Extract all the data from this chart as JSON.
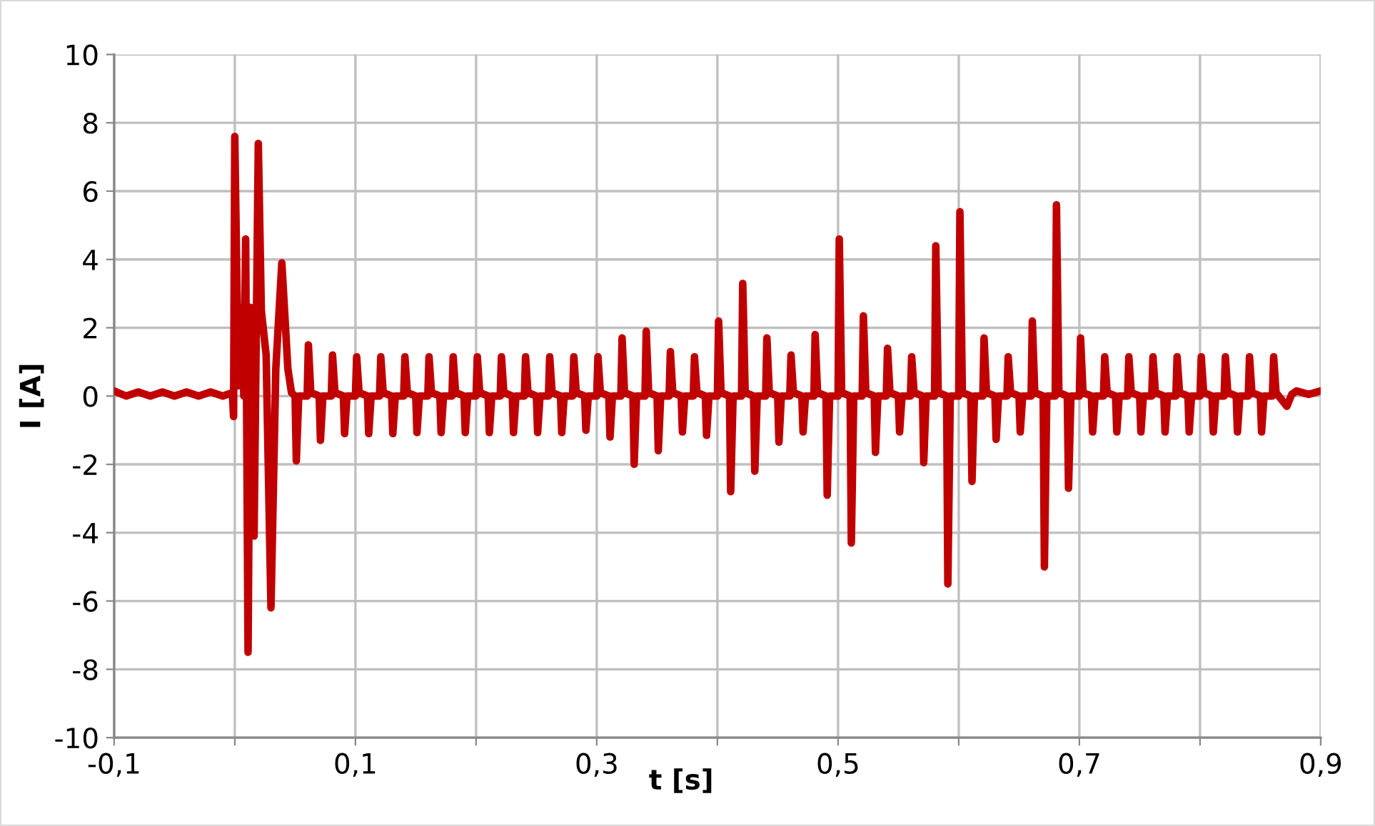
{
  "chart_data": {
    "type": "line",
    "xlabel": "t [s]",
    "ylabel": "I [A]",
    "xlim": [
      -0.1,
      0.9
    ],
    "ylim": [
      -10,
      10
    ],
    "xticks": [
      {
        "value": -0.1,
        "label": "-0,1"
      },
      {
        "value": 0,
        "label": null
      },
      {
        "value": 0.1,
        "label": "0,1"
      },
      {
        "value": 0.2,
        "label": null
      },
      {
        "value": 0.3,
        "label": "0,3"
      },
      {
        "value": 0.4,
        "label": null
      },
      {
        "value": 0.5,
        "label": "0,5"
      },
      {
        "value": 0.6,
        "label": null
      },
      {
        "value": 0.7,
        "label": "0,7"
      },
      {
        "value": 0.8,
        "label": null
      },
      {
        "value": 0.9,
        "label": "0,9"
      }
    ],
    "yticks": [
      -10,
      -8,
      -6,
      -4,
      -2,
      0,
      2,
      4,
      6,
      8,
      10
    ],
    "grid": true,
    "legend": false,
    "marker": "none",
    "line_style": "solid",
    "series": [
      {
        "color": "#c00000",
        "x": [
          -0.1,
          -0.09,
          -0.08,
          -0.07,
          -0.06,
          -0.05,
          -0.04,
          -0.03,
          -0.02,
          -0.01,
          -0.002,
          -0.001,
          0,
          0.003,
          0.006,
          0.0075,
          0.009,
          0.011,
          0.013,
          0.016,
          0.0195,
          0.022,
          0.026,
          0.03,
          0.034,
          0.039,
          0.044,
          0.047,
          0.05,
          0.051,
          0.053,
          0.06,
          0.061,
          0.063,
          0.07,
          0.071,
          0.073,
          0.08,
          0.081,
          0.083,
          0.09,
          0.091,
          0.093,
          0.1,
          0.101,
          0.103,
          0.11,
          0.111,
          0.113,
          0.12,
          0.121,
          0.123,
          0.13,
          0.131,
          0.133,
          0.14,
          0.141,
          0.143,
          0.15,
          0.151,
          0.153,
          0.16,
          0.161,
          0.163,
          0.17,
          0.171,
          0.173,
          0.18,
          0.181,
          0.183,
          0.19,
          0.191,
          0.193,
          0.2,
          0.201,
          0.203,
          0.21,
          0.211,
          0.213,
          0.22,
          0.221,
          0.223,
          0.23,
          0.231,
          0.233,
          0.24,
          0.241,
          0.243,
          0.25,
          0.251,
          0.253,
          0.26,
          0.261,
          0.263,
          0.27,
          0.271,
          0.273,
          0.28,
          0.281,
          0.283,
          0.29,
          0.291,
          0.293,
          0.3,
          0.301,
          0.303,
          0.31,
          0.311,
          0.313,
          0.32,
          0.321,
          0.323,
          0.33,
          0.331,
          0.333,
          0.34,
          0.341,
          0.343,
          0.35,
          0.351,
          0.353,
          0.36,
          0.361,
          0.363,
          0.37,
          0.371,
          0.373,
          0.38,
          0.381,
          0.383,
          0.39,
          0.391,
          0.393,
          0.4,
          0.401,
          0.403,
          0.41,
          0.411,
          0.413,
          0.42,
          0.421,
          0.423,
          0.43,
          0.431,
          0.433,
          0.44,
          0.441,
          0.443,
          0.45,
          0.451,
          0.453,
          0.46,
          0.461,
          0.463,
          0.47,
          0.471,
          0.473,
          0.48,
          0.481,
          0.483,
          0.49,
          0.491,
          0.493,
          0.5,
          0.501,
          0.503,
          0.51,
          0.511,
          0.513,
          0.52,
          0.521,
          0.523,
          0.53,
          0.531,
          0.533,
          0.54,
          0.541,
          0.543,
          0.55,
          0.551,
          0.553,
          0.56,
          0.561,
          0.563,
          0.57,
          0.571,
          0.573,
          0.58,
          0.581,
          0.583,
          0.59,
          0.591,
          0.593,
          0.6,
          0.601,
          0.603,
          0.61,
          0.611,
          0.613,
          0.62,
          0.621,
          0.623,
          0.63,
          0.631,
          0.633,
          0.64,
          0.641,
          0.643,
          0.65,
          0.651,
          0.653,
          0.66,
          0.661,
          0.663,
          0.67,
          0.671,
          0.673,
          0.68,
          0.681,
          0.683,
          0.69,
          0.691,
          0.693,
          0.7,
          0.701,
          0.703,
          0.71,
          0.711,
          0.713,
          0.72,
          0.721,
          0.723,
          0.73,
          0.731,
          0.733,
          0.74,
          0.741,
          0.743,
          0.75,
          0.751,
          0.753,
          0.76,
          0.761,
          0.763,
          0.77,
          0.771,
          0.773,
          0.78,
          0.781,
          0.783,
          0.79,
          0.791,
          0.793,
          0.8,
          0.801,
          0.803,
          0.81,
          0.811,
          0.813,
          0.82,
          0.821,
          0.823,
          0.83,
          0.831,
          0.833,
          0.84,
          0.841,
          0.843,
          0.85,
          0.851,
          0.853,
          0.86,
          0.861,
          0.863,
          0.872,
          0.876,
          0.88,
          0.89,
          0.9
        ],
        "values": [
          0.15,
          0,
          0.12,
          0,
          0.12,
          0,
          0.12,
          0,
          0.12,
          0,
          0.1,
          -0.6,
          7.6,
          0.3,
          2.6,
          0,
          4.6,
          -7.5,
          2.6,
          -4.1,
          7.4,
          2.5,
          1.2,
          -6.2,
          0.8,
          3.9,
          0.8,
          0.1,
          0,
          -1.9,
          0,
          0,
          1.5,
          0.1,
          0,
          -1.3,
          0,
          0,
          1.2,
          0.1,
          0,
          -1.1,
          0,
          0,
          1.15,
          0.1,
          0,
          -1.1,
          0,
          0,
          1.15,
          0.1,
          0,
          -1.1,
          0,
          0,
          1.15,
          0.1,
          0,
          -1.07,
          0,
          0,
          1.15,
          0.1,
          0,
          -1.07,
          0,
          0,
          1.15,
          0.1,
          0,
          -1.07,
          0,
          0,
          1.15,
          0.1,
          0,
          -1.07,
          0,
          0,
          1.15,
          0.1,
          0,
          -1.07,
          0,
          0,
          1.15,
          0.1,
          0,
          -1.07,
          0,
          0,
          1.15,
          0.1,
          0,
          -1.07,
          0,
          0,
          1.15,
          0.1,
          0,
          -1.0,
          0,
          0,
          1.15,
          0.1,
          0,
          -1.2,
          0,
          0,
          1.7,
          0.1,
          0,
          -2.0,
          0,
          0,
          1.9,
          0.1,
          0,
          -1.6,
          0,
          0,
          1.3,
          0.1,
          0,
          -1.05,
          0,
          0,
          1.15,
          0.1,
          0,
          -1.15,
          0,
          0,
          2.2,
          0.1,
          0,
          -2.8,
          0,
          0,
          3.3,
          0.1,
          0,
          -2.2,
          0,
          0,
          1.7,
          0.1,
          0,
          -1.35,
          0,
          0,
          1.2,
          0.1,
          0,
          -1.05,
          0,
          0,
          1.8,
          0.1,
          0,
          -2.9,
          0,
          0,
          4.6,
          0.1,
          0,
          -4.3,
          0,
          0,
          2.35,
          0.1,
          0,
          -1.65,
          0,
          0,
          1.4,
          0.1,
          0,
          -1.05,
          0,
          0,
          1.15,
          0.1,
          0,
          -1.95,
          0,
          0,
          4.4,
          0.1,
          0,
          -5.5,
          0,
          0,
          5.4,
          0.1,
          0,
          -2.5,
          0,
          0,
          1.7,
          0.1,
          0,
          -1.27,
          0,
          0,
          1.15,
          0.1,
          0,
          -1.05,
          0,
          0,
          2.2,
          0.1,
          0,
          -5.0,
          0,
          0,
          5.6,
          0.1,
          0,
          -2.7,
          0,
          0,
          1.7,
          0.1,
          0,
          -1.05,
          0,
          0,
          1.15,
          0.1,
          0,
          -1.05,
          0,
          0,
          1.15,
          0.1,
          0,
          -1.05,
          0,
          0,
          1.15,
          0.1,
          0,
          -1.05,
          0,
          0,
          1.15,
          0.1,
          0,
          -1.05,
          0,
          0,
          1.15,
          0.1,
          0,
          -1.05,
          0,
          0,
          1.15,
          0.1,
          0,
          -1.05,
          0,
          0,
          1.15,
          0.1,
          0,
          -1.05,
          0,
          0,
          1.15,
          0.1,
          -0.3,
          0.05,
          0.15,
          0.05,
          0.15
        ]
      }
    ]
  }
}
